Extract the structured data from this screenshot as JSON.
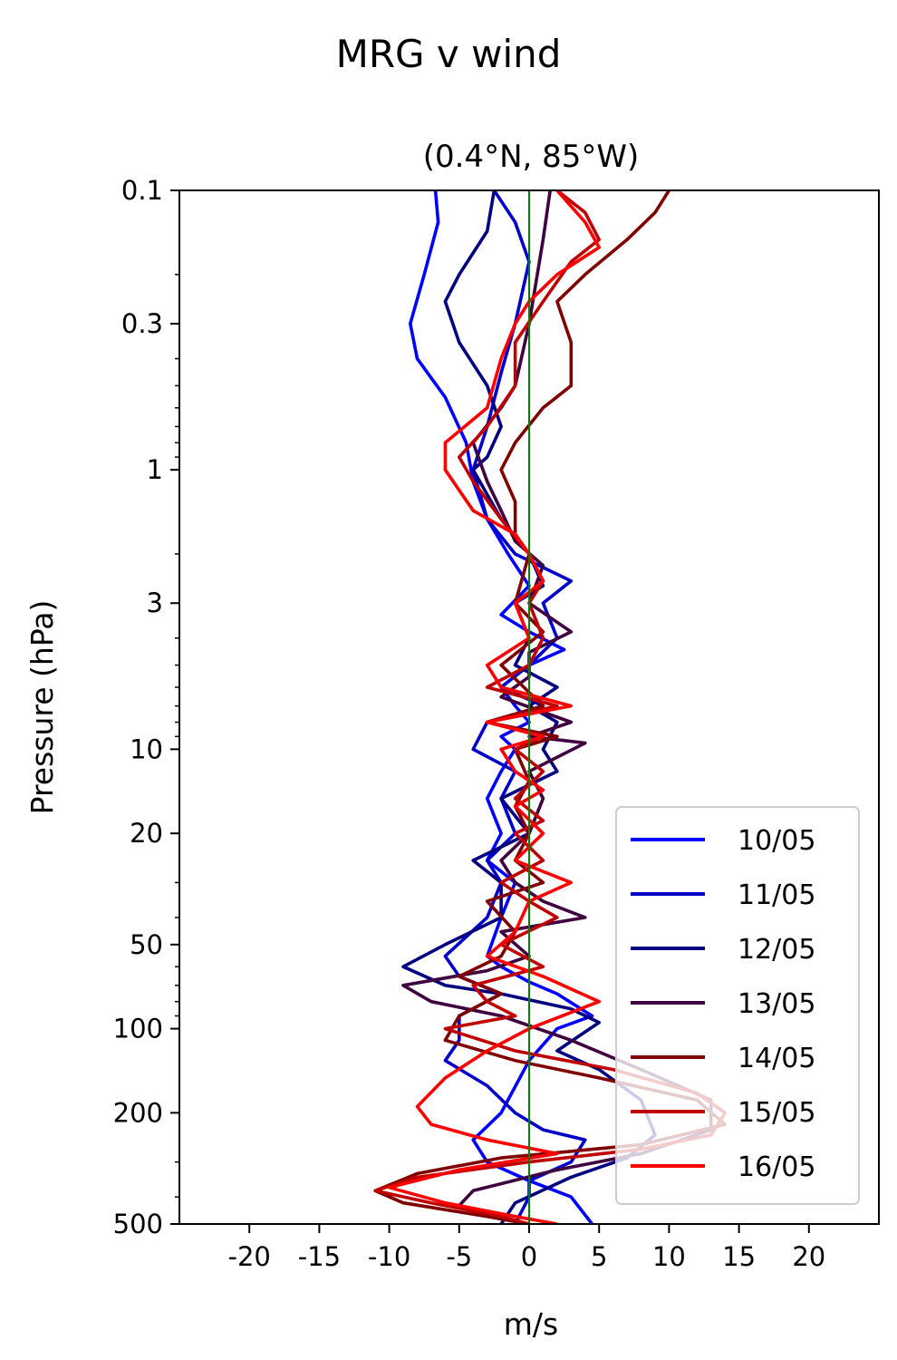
{
  "chart_data": {
    "type": "line",
    "title": "MRG v wind",
    "subtitle": "(0.4°N, 85°W)",
    "xlabel": "m/s",
    "ylabel": "Pressure (hPa)",
    "xlim": [
      -25,
      25
    ],
    "ylim": [
      500,
      0.1
    ],
    "yscale": "log",
    "x_ticks": [
      -20,
      -15,
      -10,
      -5,
      0,
      5,
      10,
      15,
      20
    ],
    "x_tick_labels": [
      "-20",
      "-15",
      "-10",
      "-5",
      "0",
      "5",
      "10",
      "15",
      "20"
    ],
    "y_ticks": [
      0.1,
      0.3,
      1,
      3,
      10,
      20,
      50,
      100,
      200,
      500
    ],
    "y_tick_labels": [
      "0.1",
      "0.3",
      "1",
      "3",
      "10",
      "20",
      "50",
      "100",
      "200",
      "500"
    ],
    "reference_line": {
      "x": 0,
      "color": "#008000"
    },
    "grid": false,
    "legend_position": "lower right",
    "series": [
      {
        "name": "10/05",
        "color": "#0000ff",
        "points": [
          [
            -6.7,
            0.1
          ],
          [
            -6.5,
            0.13
          ],
          [
            -7.5,
            0.2
          ],
          [
            -8.5,
            0.3
          ],
          [
            -8,
            0.4
          ],
          [
            -6,
            0.55
          ],
          [
            -4.5,
            0.8
          ],
          [
            -4,
            1.1
          ],
          [
            -3,
            1.5
          ],
          [
            -1.5,
            2
          ],
          [
            0,
            2.6
          ],
          [
            -2,
            3.3
          ],
          [
            0,
            3.8
          ],
          [
            2.5,
            4.4
          ],
          [
            0,
            5
          ],
          [
            -2,
            6
          ],
          [
            -1,
            7
          ],
          [
            0,
            8
          ],
          [
            -2,
            9
          ],
          [
            -1,
            10
          ],
          [
            -2,
            12
          ],
          [
            -3,
            15
          ],
          [
            -2,
            20
          ],
          [
            -3,
            25
          ],
          [
            -1,
            30
          ],
          [
            -2,
            40
          ],
          [
            -3,
            55
          ],
          [
            -2,
            60
          ],
          [
            0,
            68
          ],
          [
            2,
            75
          ],
          [
            4.5,
            90
          ],
          [
            2,
            100
          ],
          [
            0,
            130
          ],
          [
            -2,
            200
          ],
          [
            -4,
            250
          ],
          [
            -3,
            300
          ],
          [
            0,
            350
          ],
          [
            3,
            400
          ],
          [
            4.5,
            500
          ]
        ]
      },
      {
        "name": "11/05",
        "color": "#0000c8",
        "points": [
          [
            -2.5,
            0.1
          ],
          [
            -1,
            0.13
          ],
          [
            0,
            0.18
          ],
          [
            -1,
            0.3
          ],
          [
            -2,
            0.45
          ],
          [
            -3,
            0.7
          ],
          [
            -4,
            1
          ],
          [
            -3,
            1.5
          ],
          [
            -1,
            2
          ],
          [
            3,
            2.5
          ],
          [
            1,
            3
          ],
          [
            2,
            4
          ],
          [
            0,
            5
          ],
          [
            -2,
            6
          ],
          [
            1,
            7
          ],
          [
            -3,
            8
          ],
          [
            -4,
            10
          ],
          [
            -1,
            12
          ],
          [
            -2,
            15
          ],
          [
            -1,
            20
          ],
          [
            -3,
            25
          ],
          [
            -2,
            30
          ],
          [
            -3,
            40
          ],
          [
            -6,
            55
          ],
          [
            -5,
            65
          ],
          [
            -2,
            75
          ],
          [
            -5,
            90
          ],
          [
            -5,
            110
          ],
          [
            -6,
            130
          ],
          [
            -3,
            160
          ],
          [
            -1,
            200
          ],
          [
            1,
            230
          ],
          [
            4,
            250
          ],
          [
            3,
            300
          ],
          [
            0,
            350
          ],
          [
            0,
            400
          ],
          [
            -1,
            500
          ]
        ]
      },
      {
        "name": "12/05",
        "color": "#000080",
        "points": [
          [
            -2.5,
            0.1
          ],
          [
            -3,
            0.14
          ],
          [
            -5,
            0.2
          ],
          [
            -6,
            0.25
          ],
          [
            -5,
            0.35
          ],
          [
            -3,
            0.5
          ],
          [
            -2,
            0.7
          ],
          [
            -3,
            0.9
          ],
          [
            -4,
            1
          ],
          [
            -2,
            1.5
          ],
          [
            0,
            2
          ],
          [
            1,
            2.6
          ],
          [
            -1,
            3
          ],
          [
            0,
            4
          ],
          [
            -1,
            5
          ],
          [
            2,
            6
          ],
          [
            0,
            7
          ],
          [
            2,
            8
          ],
          [
            1,
            10
          ],
          [
            2,
            12
          ],
          [
            -2,
            15
          ],
          [
            0,
            20
          ],
          [
            -4,
            25
          ],
          [
            -2,
            30
          ],
          [
            -2,
            40
          ],
          [
            -6,
            50
          ],
          [
            -9,
            60
          ],
          [
            -6,
            70
          ],
          [
            -2,
            75
          ],
          [
            3,
            85
          ],
          [
            5,
            95
          ],
          [
            2,
            120
          ],
          [
            5,
            140
          ],
          [
            8,
            180
          ],
          [
            9,
            240
          ],
          [
            7,
            290
          ],
          [
            3,
            340
          ],
          [
            -1,
            420
          ],
          [
            -2,
            500
          ]
        ]
      },
      {
        "name": "13/05",
        "color": "#400040",
        "points": [
          [
            1.5,
            0.1
          ],
          [
            1,
            0.15
          ],
          [
            0,
            0.3
          ],
          [
            -1,
            0.5
          ],
          [
            -2,
            0.6
          ],
          [
            -4,
            0.8
          ],
          [
            -3,
            1.1
          ],
          [
            -2,
            1.4
          ],
          [
            -1,
            1.8
          ],
          [
            1,
            2.2
          ],
          [
            0,
            3
          ],
          [
            3,
            3.8
          ],
          [
            0,
            4.5
          ],
          [
            0,
            5.5
          ],
          [
            -2,
            6.5
          ],
          [
            3,
            8
          ],
          [
            0,
            9
          ],
          [
            4,
            9.5
          ],
          [
            0,
            12
          ],
          [
            1,
            15
          ],
          [
            0,
            20
          ],
          [
            -2,
            25
          ],
          [
            -1,
            30
          ],
          [
            1,
            35
          ],
          [
            4,
            40
          ],
          [
            -2,
            45
          ],
          [
            0,
            55
          ],
          [
            -3,
            62
          ],
          [
            -9,
            70
          ],
          [
            -7,
            80
          ],
          [
            -2,
            90
          ],
          [
            3,
            110
          ],
          [
            8,
            140
          ],
          [
            13,
            180
          ],
          [
            13,
            230
          ],
          [
            8,
            280
          ],
          [
            2,
            320
          ],
          [
            -4,
            380
          ],
          [
            -5,
            430
          ],
          [
            -2,
            480
          ],
          [
            0,
            500
          ]
        ]
      },
      {
        "name": "14/05",
        "color": "#800000",
        "points": [
          [
            10,
            0.1
          ],
          [
            9,
            0.12
          ],
          [
            7,
            0.15
          ],
          [
            4,
            0.2
          ],
          [
            2,
            0.25
          ],
          [
            3,
            0.35
          ],
          [
            3,
            0.5
          ],
          [
            1,
            0.6
          ],
          [
            -1,
            0.8
          ],
          [
            -2,
            1
          ],
          [
            -1,
            1.3
          ],
          [
            -1,
            1.7
          ],
          [
            0,
            2
          ],
          [
            -1,
            3
          ],
          [
            1,
            3.8
          ],
          [
            -2,
            5
          ],
          [
            1,
            7
          ],
          [
            -3,
            8
          ],
          [
            2,
            9
          ],
          [
            -1,
            10
          ],
          [
            0,
            13
          ],
          [
            -1,
            16
          ],
          [
            0,
            20
          ],
          [
            -1,
            25
          ],
          [
            1,
            30
          ],
          [
            -3,
            35
          ],
          [
            -1,
            45
          ],
          [
            -2,
            55
          ],
          [
            -5,
            65
          ],
          [
            -2,
            75
          ],
          [
            -5,
            90
          ],
          [
            -6,
            110
          ],
          [
            -1,
            130
          ],
          [
            5,
            150
          ],
          [
            12,
            180
          ],
          [
            14,
            220
          ],
          [
            8,
            260
          ],
          [
            -2,
            290
          ],
          [
            -8,
            330
          ],
          [
            -11,
            380
          ],
          [
            -9,
            420
          ],
          [
            -3,
            470
          ],
          [
            0,
            500
          ]
        ]
      },
      {
        "name": "15/05",
        "color": "#c00000",
        "points": [
          [
            2,
            0.1
          ],
          [
            4,
            0.12
          ],
          [
            5,
            0.15
          ],
          [
            3,
            0.18
          ],
          [
            1,
            0.25
          ],
          [
            -1,
            0.35
          ],
          [
            -1,
            0.5
          ],
          [
            -3,
            0.7
          ],
          [
            -5,
            0.9
          ],
          [
            -4,
            1.1
          ],
          [
            -2,
            1.5
          ],
          [
            0,
            2
          ],
          [
            1,
            2.5
          ],
          [
            0,
            3
          ],
          [
            1,
            4
          ],
          [
            0,
            5
          ],
          [
            -3,
            6
          ],
          [
            2,
            7
          ],
          [
            -3,
            8
          ],
          [
            1,
            9
          ],
          [
            -1,
            10
          ],
          [
            1,
            12
          ],
          [
            -1,
            15
          ],
          [
            1,
            18
          ],
          [
            -1,
            20
          ],
          [
            1,
            25
          ],
          [
            -2,
            30
          ],
          [
            0,
            35
          ],
          [
            2,
            40
          ],
          [
            -2,
            50
          ],
          [
            1,
            60
          ],
          [
            -4,
            70
          ],
          [
            -3,
            80
          ],
          [
            -1,
            90
          ],
          [
            -6,
            100
          ],
          [
            -1,
            120
          ],
          [
            6,
            140
          ],
          [
            12,
            170
          ],
          [
            14,
            200
          ],
          [
            13,
            240
          ],
          [
            8,
            270
          ],
          [
            0,
            300
          ],
          [
            -8,
            340
          ],
          [
            -11,
            380
          ],
          [
            -7,
            420
          ],
          [
            -2,
            470
          ],
          [
            0,
            500
          ]
        ]
      },
      {
        "name": "16/05",
        "color": "#ff0000",
        "points": [
          [
            2,
            0.1
          ],
          [
            4,
            0.13
          ],
          [
            5,
            0.16
          ],
          [
            2,
            0.2
          ],
          [
            0,
            0.25
          ],
          [
            -1,
            0.3
          ],
          [
            -2,
            0.4
          ],
          [
            -3,
            0.6
          ],
          [
            -6,
            0.8
          ],
          [
            -6,
            1
          ],
          [
            -4,
            1.4
          ],
          [
            -1,
            1.7
          ],
          [
            0,
            2
          ],
          [
            1,
            2.5
          ],
          [
            -1,
            3
          ],
          [
            0,
            4
          ],
          [
            -3,
            5
          ],
          [
            -2,
            6
          ],
          [
            3,
            7
          ],
          [
            -3,
            8
          ],
          [
            1,
            9
          ],
          [
            -2,
            10
          ],
          [
            -1,
            12
          ],
          [
            1,
            14
          ],
          [
            -1,
            16
          ],
          [
            1,
            20
          ],
          [
            -1,
            25
          ],
          [
            3,
            30
          ],
          [
            0,
            35
          ],
          [
            -1,
            45
          ],
          [
            -3,
            55
          ],
          [
            1,
            65
          ],
          [
            5,
            80
          ],
          [
            0,
            100
          ],
          [
            -3,
            120
          ],
          [
            -6,
            150
          ],
          [
            -8,
            190
          ],
          [
            -7,
            220
          ],
          [
            -3,
            250
          ],
          [
            2,
            280
          ],
          [
            -5,
            320
          ],
          [
            -10,
            370
          ],
          [
            -6,
            420
          ],
          [
            -1,
            470
          ],
          [
            2,
            500
          ]
        ]
      }
    ]
  }
}
